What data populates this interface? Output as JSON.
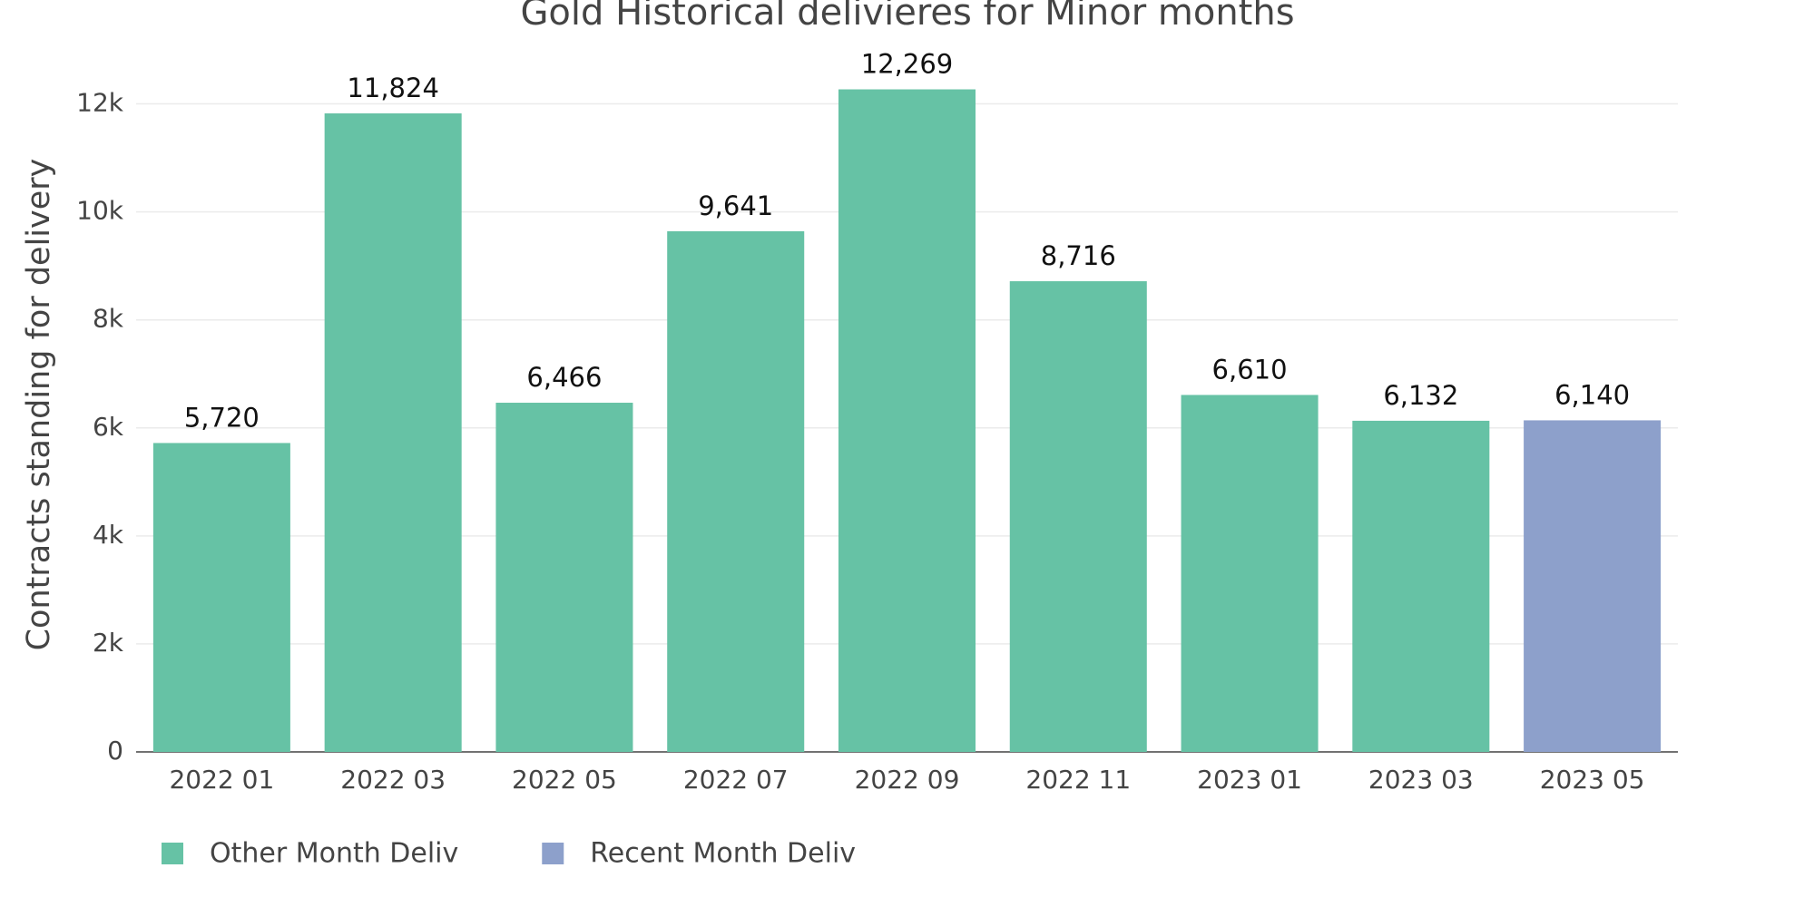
{
  "chart_data": {
    "type": "bar",
    "title": "Gold Historical delivieres for Minor months",
    "y_label": "Contracts standing for delivery",
    "categories": [
      "2022 01",
      "2022 03",
      "2022 05",
      "2022 07",
      "2022 09",
      "2022 11",
      "2023 01",
      "2023 03",
      "2023 05"
    ],
    "series": [
      {
        "name": "Other Month Deliv",
        "color": "#66c2a5",
        "values": [
          5720,
          11824,
          6466,
          9641,
          12269,
          8716,
          6610,
          6132,
          null
        ],
        "value_labels": [
          "5,720",
          "11,824",
          "6,466",
          "9,641",
          "12,269",
          "8,716",
          "6,610",
          "6,132",
          null
        ]
      },
      {
        "name": "Recent Month Deliv",
        "color": "#8da0cb",
        "values": [
          null,
          null,
          null,
          null,
          null,
          null,
          null,
          null,
          6140
        ],
        "value_labels": [
          null,
          null,
          null,
          null,
          null,
          null,
          null,
          null,
          "6,140"
        ]
      }
    ],
    "ylim": [
      0,
      13000
    ],
    "yticks": [
      0,
      {
        "value": 2000,
        "label": "2k"
      },
      {
        "value": 4000,
        "label": "4k"
      },
      {
        "value": 6000,
        "label": "6k"
      },
      {
        "value": 8000,
        "label": "8k"
      },
      {
        "value": 10000,
        "label": "10k"
      },
      {
        "value": 12000,
        "label": "12k"
      }
    ],
    "grid": true
  }
}
